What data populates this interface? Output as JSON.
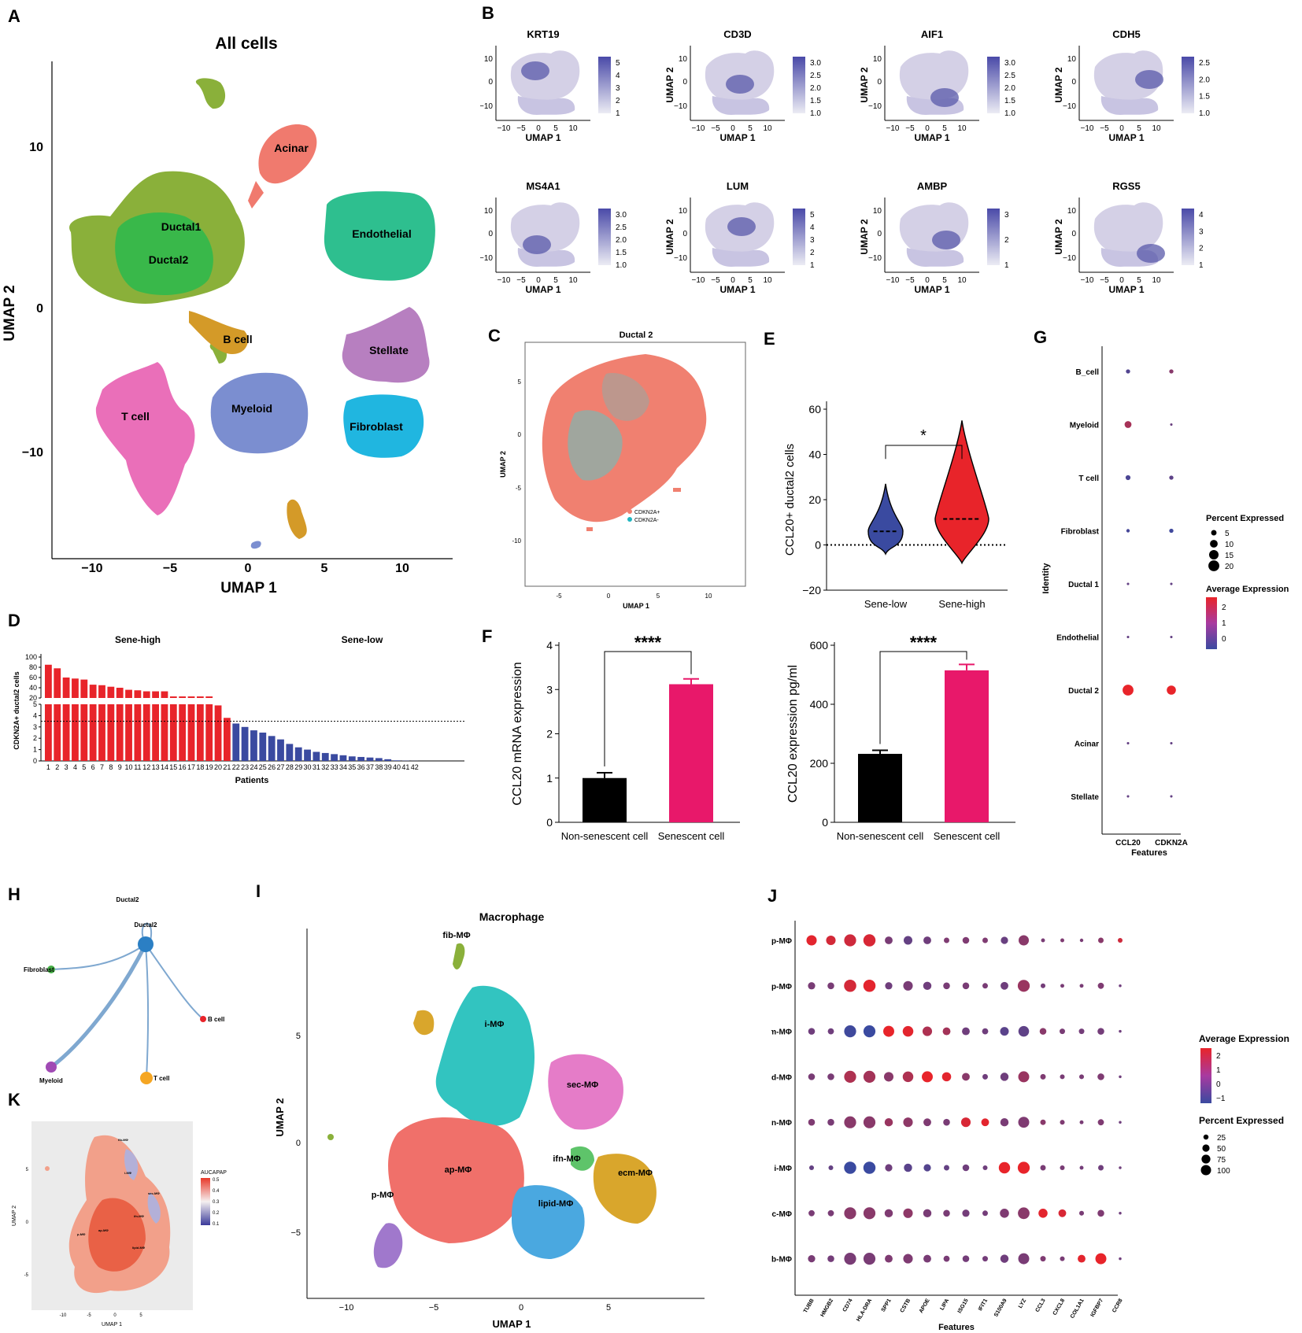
{
  "panels": {
    "A": "A",
    "B": "B",
    "C": "C",
    "D": "D",
    "E": "E",
    "F": "F",
    "G": "G",
    "H": "H",
    "I": "I",
    "J": "J",
    "K": "K"
  },
  "colors": {
    "red": "#e8242a",
    "blue": "#3a4aa0",
    "pink": "#e8186a",
    "black": "#000000"
  },
  "a": {
    "title": "All cells",
    "xlabel": "UMAP 1",
    "ylabel": "UMAP 2",
    "xticks": [
      "−10",
      "−5",
      "0",
      "5",
      "10"
    ],
    "yticks": [
      "10",
      "0",
      "−10"
    ],
    "clusters": [
      {
        "name": "Acinar",
        "color": "#f07a6e"
      },
      {
        "name": "Ductal1",
        "color": "#8ab03a"
      },
      {
        "name": "Ductal2",
        "color": "#39b84a"
      },
      {
        "name": "Endothelial",
        "color": "#2ebf8f"
      },
      {
        "name": "B cell",
        "color": "#d49a28"
      },
      {
        "name": "Stellate",
        "color": "#b77fc0"
      },
      {
        "name": "T cell",
        "color": "#ea6fb9"
      },
      {
        "name": "Myeloid",
        "color": "#7b8ed0"
      },
      {
        "name": "Fibroblast",
        "color": "#20b6e0"
      }
    ]
  },
  "b": {
    "xlabel": "UMAP 1",
    "ylabel": "UMAP 2",
    "xticks": [
      "−10",
      "−5",
      "0",
      "5",
      "10"
    ],
    "yticks": [
      "10",
      "0",
      "−10"
    ],
    "genes": [
      {
        "name": "KRT19",
        "legend": [
          "5",
          "4",
          "3",
          "2",
          "1"
        ]
      },
      {
        "name": "CD3D",
        "legend": [
          "3.0",
          "2.5",
          "2.0",
          "1.5",
          "1.0"
        ]
      },
      {
        "name": "AIF1",
        "legend": [
          "3.0",
          "2.5",
          "2.0",
          "1.5",
          "1.0"
        ]
      },
      {
        "name": "CDH5",
        "legend": [
          "2.5",
          "2.0",
          "1.5",
          "1.0"
        ]
      },
      {
        "name": "MS4A1",
        "legend": [
          "3.0",
          "2.5",
          "2.0",
          "1.5",
          "1.0"
        ]
      },
      {
        "name": "LUM",
        "legend": [
          "5",
          "4",
          "3",
          "2",
          "1"
        ]
      },
      {
        "name": "AMBP",
        "legend": [
          "3",
          "2",
          "1"
        ]
      },
      {
        "name": "RGS5",
        "legend": [
          "4",
          "3",
          "2",
          "1"
        ]
      }
    ]
  },
  "c": {
    "title": "Ductal 2",
    "xlabel": "UMAP 1",
    "ylabel": "UMAP 2",
    "xticks": [
      "-5",
      "0",
      "5",
      "10"
    ],
    "yticks": [
      "5",
      "0",
      "-5",
      "-10"
    ],
    "legend": [
      "CDKN2A+",
      "CDKN2A-"
    ]
  },
  "d": {
    "ylabel": "CDKN2A+ ductal2 cells",
    "xlabel": "Patients",
    "group_high": "Sene-high",
    "group_low": "Sene-low",
    "upper_ticks": [
      "100",
      "80",
      "60",
      "40",
      "20"
    ],
    "lower_ticks": [
      "5",
      "4",
      "3",
      "2",
      "1",
      "0"
    ]
  },
  "e": {
    "ylabel": "CCL20+ ductal2 cells",
    "sig": "*",
    "yticks": [
      "60",
      "40",
      "20",
      "0",
      "−20"
    ],
    "groups": [
      "Sene-low",
      "Sene-high"
    ]
  },
  "f1": {
    "ylabel": "CCL20 mRNA expression",
    "sig": "****",
    "yticks": [
      "4",
      "3",
      "2",
      "1",
      "0"
    ],
    "categories": [
      "Non-senescent cell",
      "Senescent cell"
    ]
  },
  "f2": {
    "ylabel": "CCL20 expression pg/ml",
    "sig": "****",
    "yticks": [
      "600",
      "400",
      "200",
      "0"
    ],
    "categories": [
      "Non-senescent cell",
      "Senescent cell"
    ]
  },
  "g": {
    "ylabel": "Identity",
    "xlabel": "Features",
    "features": [
      "CCL20",
      "CDKN2A"
    ],
    "identities": [
      "B_cell",
      "Myeloid",
      "T cell",
      "Fibroblast",
      "Ductal 1",
      "Endothelial",
      "Ductal 2",
      "Acinar",
      "Stellate"
    ],
    "pct_title": "Percent Expressed",
    "pct_values": [
      "5",
      "10",
      "15",
      "20"
    ],
    "avg_title": "Average Expression",
    "avg_values": [
      "2",
      "1",
      "0"
    ]
  },
  "h": {
    "nodes": [
      "Ductal2",
      "Ductal2",
      "Fibroblast",
      "B cell",
      "Myeloid",
      "T cell"
    ]
  },
  "i": {
    "title": "Macrophage",
    "xlabel": "UMAP 1",
    "ylabel": "UMAP 2",
    "xticks": [
      "−10",
      "−5",
      "0",
      "5"
    ],
    "yticks": [
      "5",
      "0",
      "−5"
    ],
    "clusters": [
      "fib-MΦ",
      "i-MΦ",
      "sec-MΦ",
      "ifn-MΦ",
      "ecm-MΦ",
      "ap-MΦ",
      "lipid-MΦ",
      "p-MΦ"
    ]
  },
  "j": {
    "ylabel": "Identity",
    "xlabel": "Features",
    "identities": [
      "p-MΦ",
      "ap-MΦ",
      "ecm-MΦ",
      "lipid-MΦ",
      "ifn-MΦ",
      "i-MΦ",
      "sec-MΦ",
      "fib-MΦ"
    ],
    "features": [
      "TUBB",
      "HMGB2",
      "CD74",
      "HLA-DRA",
      "SPP1",
      "CSTB",
      "APOE",
      "LIPA",
      "ISG15",
      "IFIT1",
      "S100A9",
      "LYZ",
      "CCL3",
      "CXCL8",
      "COL1A1",
      "IGFBP7",
      "CCR8"
    ],
    "avg_title": "Average Expression",
    "avg_values": [
      "2",
      "1",
      "0",
      "−1"
    ],
    "pct_title": "Percent Expressed",
    "pct_values": [
      "25",
      "50",
      "75",
      "100"
    ]
  },
  "k": {
    "xlabel": "UMAP 1",
    "ylabel": "UMAP 2",
    "legend_title": "AUCAPAP",
    "legend_values": [
      "0.5",
      "0.4",
      "0.3",
      "0.2",
      "0.1"
    ],
    "xticks": [
      "-10",
      "-5",
      "0",
      "5"
    ],
    "yticks": [
      "5",
      "0",
      "-5"
    ]
  },
  "chart_data": [
    {
      "type": "bar",
      "panel": "D",
      "xlabel": "Patients",
      "ylabel": "CDKN2A+ ductal2 cells",
      "categories": [
        "1",
        "2",
        "3",
        "4",
        "5",
        "6",
        "7",
        "8",
        "9",
        "10",
        "11",
        "12",
        "13",
        "14",
        "15",
        "16",
        "17",
        "18",
        "19",
        "20",
        "21",
        "22",
        "23",
        "24",
        "25",
        "26",
        "27",
        "28",
        "29",
        "30",
        "31",
        "32",
        "33",
        "34",
        "35",
        "36",
        "37",
        "38",
        "39",
        "40",
        "41",
        "42"
      ],
      "values": [
        85,
        78,
        60,
        58,
        56,
        46,
        45,
        42,
        40,
        36,
        35,
        33,
        33,
        33,
        18,
        17,
        17,
        6,
        6,
        4.9,
        3.8,
        3.3,
        3.0,
        2.7,
        2.5,
        2.2,
        1.9,
        1.5,
        1.2,
        1.0,
        0.8,
        0.7,
        0.6,
        0.5,
        0.4,
        0.35,
        0.3,
        0.25,
        0.15,
        0.05,
        0.02,
        0.01
      ],
      "threshold": 3.5,
      "high_count": 21,
      "broken_axis": [
        5,
        20
      ]
    },
    {
      "type": "violin",
      "panel": "E",
      "ylabel": "CCL20+ ductal2 cells",
      "ylim": [
        -20,
        60
      ],
      "groups": [
        "Sene-low",
        "Sene-high"
      ],
      "medians": [
        6,
        11.5
      ],
      "ranges": [
        [
          -4,
          27
        ],
        [
          -8,
          55
        ]
      ],
      "significance": "*"
    },
    {
      "type": "bar",
      "panel": "F-left",
      "categories": [
        "Non-senescent cell",
        "Senescent cell"
      ],
      "values": [
        1.0,
        3.12
      ],
      "errors": [
        0.12,
        0.12
      ],
      "ylim": [
        0,
        4
      ],
      "ylabel": "CCL20 mRNA expression",
      "significance": "****"
    },
    {
      "type": "bar",
      "panel": "F-right",
      "categories": [
        "Non-senescent cell",
        "Senescent cell"
      ],
      "values": [
        232,
        515
      ],
      "errors": [
        12,
        20
      ],
      "ylim": [
        0,
        600
      ],
      "ylabel": "CCL20 expression pg/ml",
      "significance": "****"
    },
    {
      "type": "dot",
      "panel": "G",
      "features": [
        "CCL20",
        "CDKN2A"
      ],
      "identities": [
        "B_cell",
        "Myeloid",
        "T cell",
        "Fibroblast",
        "Ductal 1",
        "Endothelial",
        "Ductal 2",
        "Acinar",
        "Stellate"
      ],
      "percent": [
        [
          3,
          3
        ],
        [
          8,
          1
        ],
        [
          4,
          3
        ],
        [
          2,
          3
        ],
        [
          1,
          1
        ],
        [
          1,
          1
        ],
        [
          20,
          14
        ],
        [
          1,
          1
        ],
        [
          1,
          1
        ]
      ],
      "average": [
        [
          -0.3,
          0.6
        ],
        [
          1.1,
          0.1
        ],
        [
          -0.4,
          -0.1
        ],
        [
          -0.5,
          -0.6
        ],
        [
          0,
          0
        ],
        [
          0,
          0
        ],
        [
          2.2,
          2.2
        ],
        [
          0,
          0
        ],
        [
          0,
          0
        ]
      ]
    },
    {
      "type": "dot",
      "panel": "J",
      "features": [
        "TUBB",
        "HMGB2",
        "CD74",
        "HLA-DRA",
        "SPP1",
        "CSTB",
        "APOE",
        "LIPA",
        "ISG15",
        "IFIT1",
        "S100A9",
        "LYZ",
        "CCL3",
        "CXCL8",
        "COL1A1",
        "IGFBP7",
        "CCR8"
      ],
      "identities": [
        "p-MΦ",
        "ap-MΦ",
        "ecm-MΦ",
        "lipid-MΦ",
        "ifn-MΦ",
        "i-MΦ",
        "sec-MΦ",
        "fib-MΦ"
      ],
      "percent": [
        [
          70,
          60,
          95,
          98,
          40,
          50,
          40,
          20,
          30,
          20,
          35,
          70,
          10,
          10,
          8,
          20,
          15
        ],
        [
          35,
          30,
          99,
          99,
          35,
          60,
          45,
          30,
          30,
          20,
          40,
          95,
          15,
          10,
          10,
          25,
          5
        ],
        [
          30,
          25,
          95,
          95,
          80,
          75,
          60,
          40,
          40,
          25,
          50,
          75,
          30,
          20,
          20,
          30,
          5
        ],
        [
          30,
          30,
          95,
          95,
          60,
          75,
          80,
          55,
          40,
          20,
          45,
          80,
          20,
          15,
          15,
          30,
          5
        ],
        [
          30,
          30,
          95,
          95,
          45,
          60,
          40,
          30,
          60,
          40,
          45,
          80,
          20,
          15,
          10,
          25,
          5
        ],
        [
          15,
          15,
          98,
          98,
          35,
          45,
          35,
          20,
          30,
          15,
          85,
          95,
          20,
          15,
          10,
          20,
          5
        ],
        [
          25,
          25,
          95,
          95,
          45,
          60,
          45,
          30,
          35,
          20,
          55,
          90,
          55,
          40,
          15,
          30,
          5
        ],
        [
          35,
          30,
          95,
          95,
          40,
          60,
          40,
          25,
          30,
          20,
          45,
          80,
          20,
          15,
          40,
          80,
          5
        ]
      ],
      "average": [
        [
          2.2,
          1.9,
          1.8,
          2.0,
          0.2,
          -0.2,
          0,
          0.3,
          0.3,
          0.3,
          -0.1,
          0.5,
          0.2,
          0.3,
          0.2,
          0.5,
          1.8
        ],
        [
          0.2,
          0.2,
          1.9,
          2.2,
          0,
          0.2,
          0,
          0.2,
          0.2,
          0.2,
          0,
          0.8,
          0.1,
          0.2,
          0.2,
          0.3,
          0
        ],
        [
          0,
          0,
          -0.9,
          -1,
          2.3,
          2.2,
          1.2,
          1.0,
          0,
          0,
          -0.4,
          -0.3,
          0.5,
          0.2,
          0.1,
          0.1,
          0
        ],
        [
          0.2,
          0.2,
          1.2,
          1.0,
          0.5,
          1.2,
          2.3,
          2.2,
          0.5,
          0,
          0,
          0.8,
          0.3,
          0.2,
          0.2,
          0.3,
          0
        ],
        [
          0.3,
          0.2,
          0.5,
          0.5,
          0.8,
          0.6,
          0.3,
          0.2,
          2.0,
          2.2,
          0.2,
          0.3,
          0.5,
          0.3,
          0.2,
          0.3,
          0
        ],
        [
          -0.2,
          -0.2,
          -1,
          -1,
          0,
          -0.4,
          -0.5,
          -0.2,
          0,
          0,
          2.3,
          2.3,
          0.2,
          0.2,
          0.1,
          0,
          0
        ],
        [
          0.2,
          0.2,
          0.5,
          0.5,
          0.3,
          0.6,
          0.2,
          0.2,
          0.1,
          0.1,
          0.3,
          0.5,
          2.2,
          2.0,
          0.2,
          0.3,
          0
        ],
        [
          0.2,
          0.1,
          0.2,
          0.2,
          0.3,
          0.3,
          0.2,
          0.2,
          0.1,
          0.1,
          0,
          0.2,
          0.3,
          0.2,
          2.2,
          2.3,
          0
        ]
      ]
    }
  ]
}
